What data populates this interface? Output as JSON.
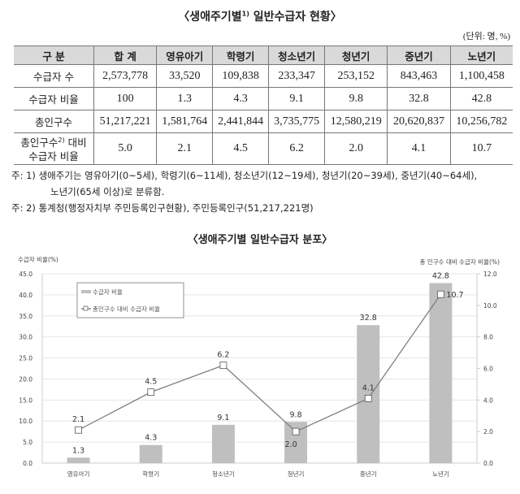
{
  "table": {
    "title": "〈생애주기별",
    "title_sup": "1)",
    "title_rest": " 일반수급자 현황〉",
    "unit": "(단위: 명, %)",
    "headers": [
      "구 분",
      "합 계",
      "영유아기",
      "학령기",
      "청소년기",
      "청년기",
      "중년기",
      "노년기"
    ],
    "rows": [
      {
        "label": "수급자 수",
        "values": [
          "2,573,778",
          "33,520",
          "109,838",
          "233,347",
          "253,152",
          "843,463",
          "1,100,458"
        ]
      },
      {
        "label": "수급자 비율",
        "values": [
          "100",
          "1.3",
          "4.3",
          "9.1",
          "9.8",
          "32.8",
          "42.8"
        ]
      },
      {
        "label": "총인구수",
        "values": [
          "51,217,221",
          "1,581,764",
          "2,441,844",
          "3,735,775",
          "12,580,219",
          "20,620,837",
          "10,256,782"
        ]
      }
    ],
    "last_row": {
      "label_a": "총인구수",
      "label_sup": "2)",
      "label_b": " 대비",
      "label_c": "수급자 비율",
      "values": [
        "5.0",
        "2.1",
        "4.5",
        "6.2",
        "2.0",
        "4.1",
        "10.7"
      ]
    },
    "notes": [
      "주: 1) 생애주기는 영유아기(0~5세), 학령기(6~11세), 청소년기(12~19세), 청년기(20~39세), 중년기(40~64세),",
      "노년기(65세 이상)로 분류함.",
      "주: 2) 통계청(행정자치부 주민등록인구현황), 주민등록인구(51,217,221명)"
    ]
  },
  "chart_data": {
    "type": "bar+line",
    "title": "〈생애주기별 일반수급자 분포〉",
    "categories": [
      "영유아기",
      "학령기",
      "청소년기",
      "청년기",
      "중년기",
      "노년기"
    ],
    "ylabel": "수급자 비율(%)",
    "y2label": "총 인구수 대비 수급자 비율(%)",
    "ylim": [
      0,
      45
    ],
    "yticks": [
      "0.0",
      "5.0",
      "10.0",
      "15.0",
      "20.0",
      "25.0",
      "30.0",
      "35.0",
      "40.0",
      "45.0"
    ],
    "y2lim": [
      0,
      12
    ],
    "y2ticks": [
      "0.0",
      "2.0",
      "4.0",
      "6.0",
      "8.0",
      "10.0",
      "12.0"
    ],
    "grid": true,
    "legend_placement": "top-left",
    "series": [
      {
        "name": "수급자 비율",
        "type": "bar",
        "axis": "left",
        "color": "#bfbfbf",
        "values": [
          1.3,
          4.3,
          9.1,
          9.8,
          32.8,
          42.8
        ],
        "labels": [
          "1.3",
          "4.3",
          "9.1",
          "9.8",
          "32.8",
          "42.8"
        ]
      },
      {
        "name": "총인구수 대비 수급자 비율",
        "type": "line",
        "axis": "right",
        "color": "#7f7f7f",
        "values": [
          2.1,
          4.5,
          6.2,
          2.0,
          4.1,
          10.7
        ],
        "labels": [
          "2.1",
          "4.5",
          "6.2",
          "2.0",
          "4.1",
          "10.7"
        ]
      }
    ]
  }
}
